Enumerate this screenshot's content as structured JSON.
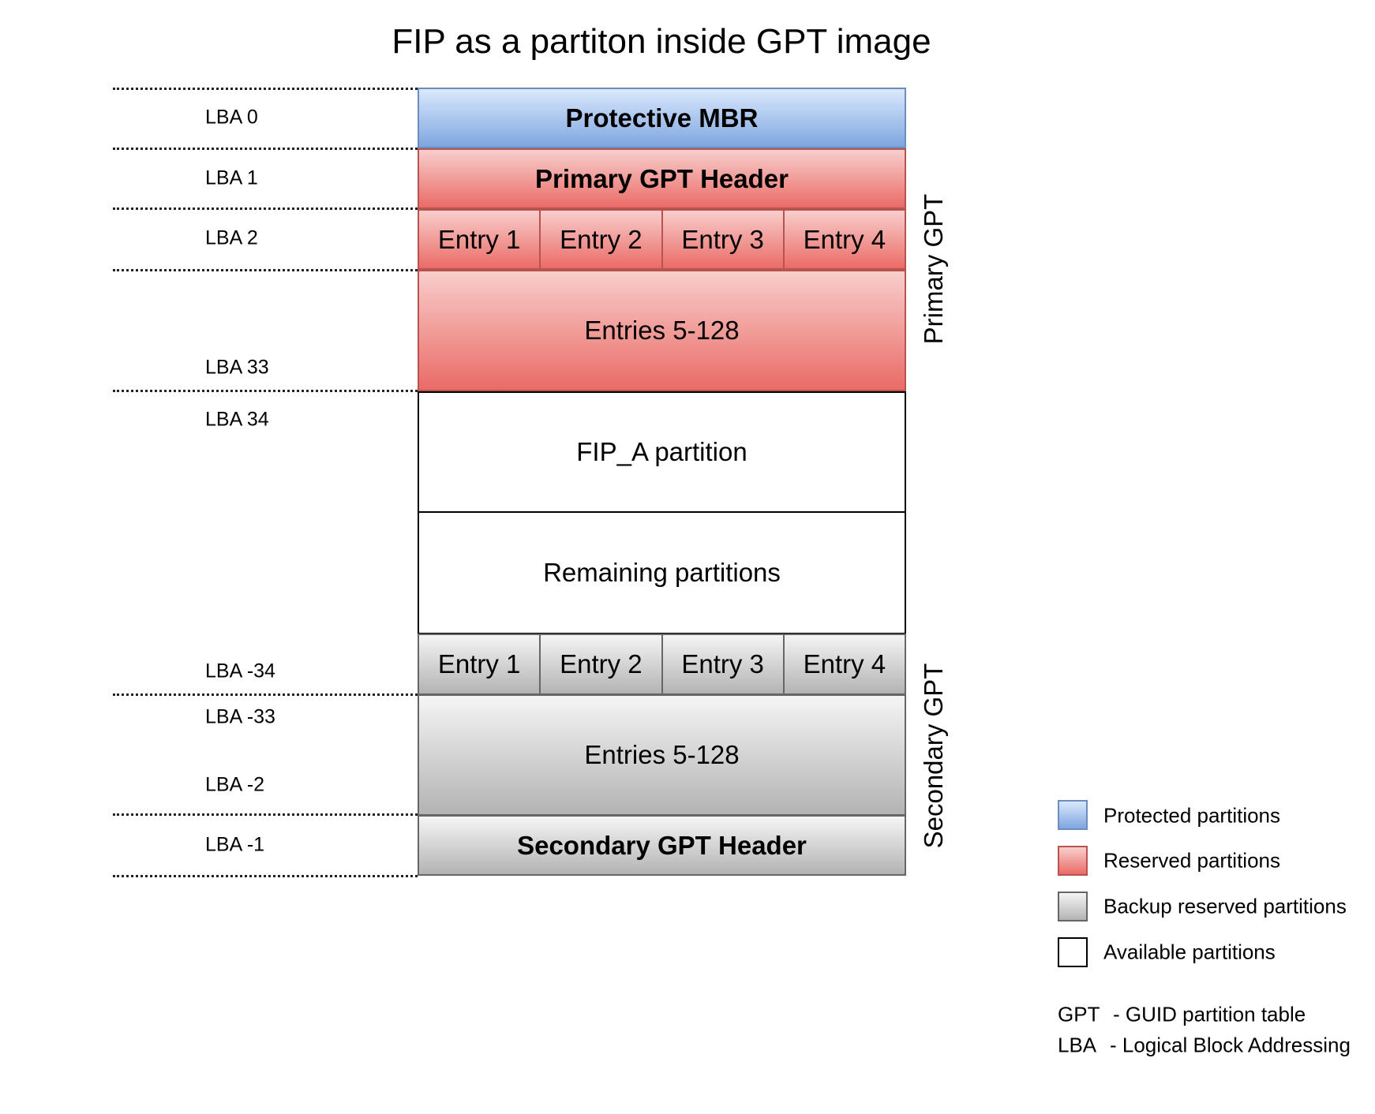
{
  "title": "FIP as a partiton inside GPT image",
  "lba_labels": [
    "LBA 0",
    "LBA 1",
    "LBA 2",
    "LBA 33",
    "LBA 34",
    "LBA -34",
    "LBA -33",
    "LBA -2",
    "LBA -1"
  ],
  "blocks": {
    "protective_mbr": "Protective MBR",
    "primary_header": "Primary GPT Header",
    "primary_entries": [
      "Entry 1",
      "Entry 2",
      "Entry 3",
      "Entry 4"
    ],
    "primary_entries_rest": "Entries 5-128",
    "fip_a": "FIP_A partition",
    "remaining": "Remaining partitions",
    "secondary_entries": [
      "Entry 1",
      "Entry 2",
      "Entry 3",
      "Entry 4"
    ],
    "secondary_entries_rest": "Entries 5-128",
    "secondary_header": "Secondary GPT Header"
  },
  "groups": {
    "primary": "Primary GPT",
    "secondary": "Secondary GPT"
  },
  "legend": [
    {
      "label": "Protected partitions",
      "color": "#7ea6e0"
    },
    {
      "label": "Reserved partitions",
      "color": "#ea6b66"
    },
    {
      "label": "Backup reserved partitions",
      "color": "#b3b3b3"
    },
    {
      "label": "Available partitions",
      "color": "#ffffff"
    }
  ],
  "abbreviations": [
    {
      "term": "GPT",
      "meaning": "- GUID partition table"
    },
    {
      "term": "LBA",
      "meaning": "- Logical Block Addressing"
    }
  ]
}
